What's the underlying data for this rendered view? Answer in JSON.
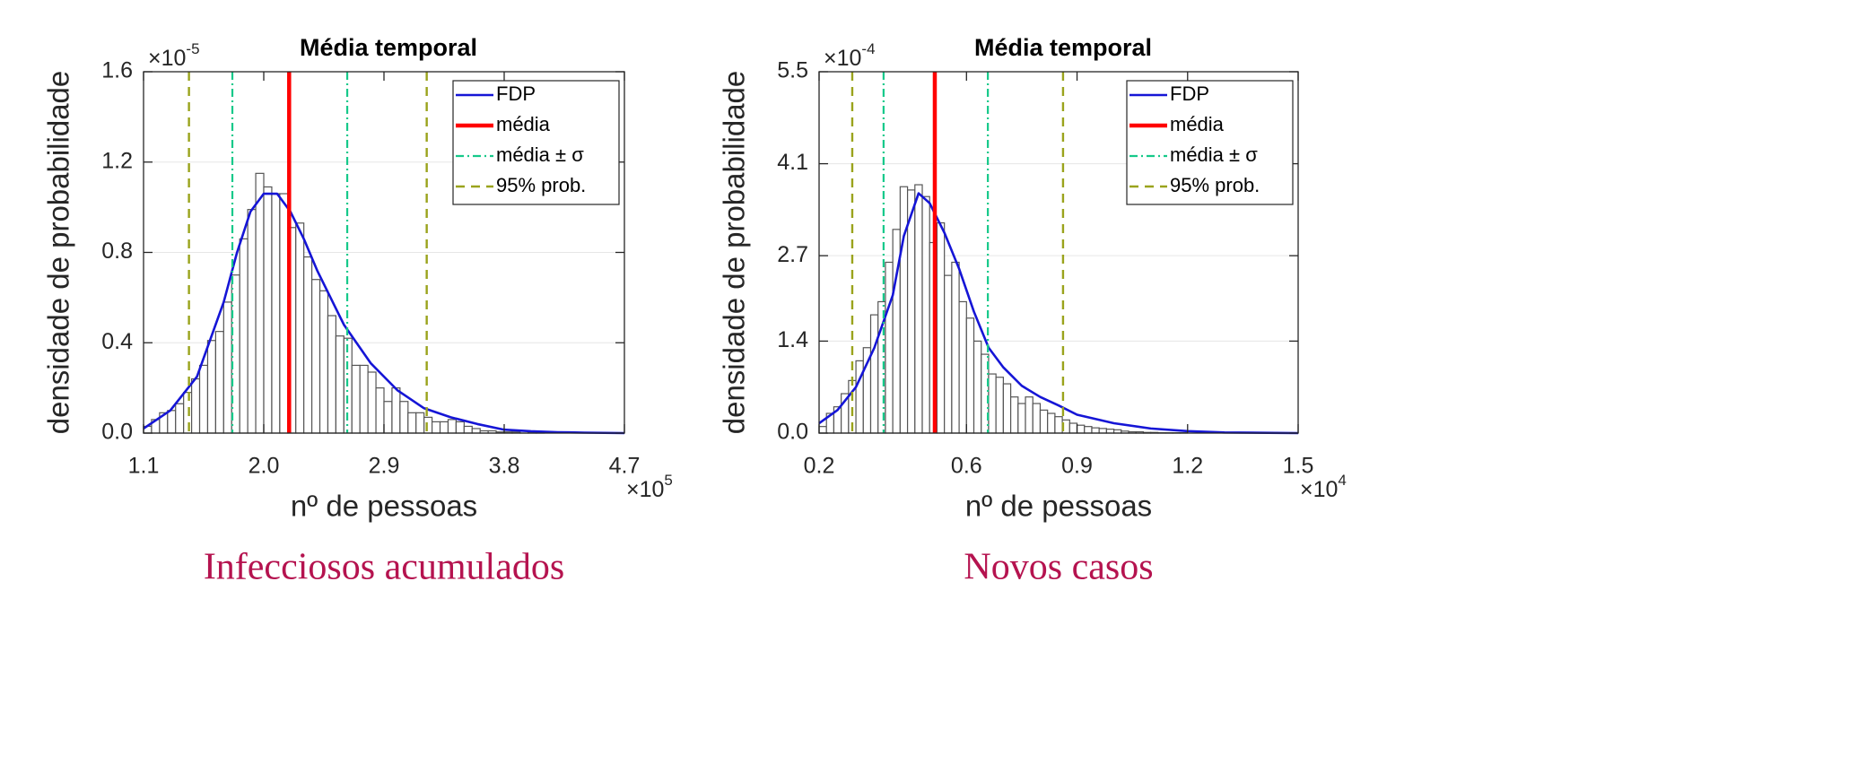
{
  "chart_data": [
    {
      "type": "histogram",
      "title": "Média temporal",
      "xlabel": "nº de pessoas",
      "ylabel": "densidade de probabilidade",
      "caption": "Infecciosos acumulados",
      "x_scale_label": {
        "base": "×10",
        "exponent": "5"
      },
      "y_scale_label": {
        "base": "×10",
        "exponent": "-5"
      },
      "xlim": [
        1.1,
        4.7
      ],
      "xticks": [
        1.1,
        {
          "value": 2.0,
          "label": "2.0"
        },
        2.9,
        3.8,
        4.7
      ],
      "ylim": [
        0,
        1.6
      ],
      "yticks": [
        {
          "value": 0,
          "label": "0.0"
        },
        0.4,
        0.8,
        1.2,
        1.6
      ],
      "grid": true,
      "legend": "upper right",
      "bar_color": "#ffffff",
      "edge_color": "#555555",
      "bins": [
        1.1,
        1.16,
        1.22,
        1.28,
        1.34,
        1.4,
        1.46,
        1.52,
        1.58,
        1.64,
        1.7,
        1.76,
        1.82,
        1.88,
        1.94,
        2.0,
        2.06,
        2.12,
        2.18,
        2.24,
        2.3,
        2.36,
        2.42,
        2.48,
        2.54,
        2.6,
        2.66,
        2.72,
        2.78,
        2.84,
        2.9,
        2.96,
        3.02,
        3.08,
        3.14,
        3.2,
        3.26,
        3.32,
        3.38,
        3.44,
        3.5,
        3.56,
        3.62,
        3.68,
        3.74,
        3.8,
        3.86,
        3.92,
        3.98,
        4.04,
        4.1
      ],
      "values": [
        0.03,
        0.06,
        0.09,
        0.1,
        0.13,
        0.18,
        0.24,
        0.3,
        0.41,
        0.45,
        0.58,
        0.7,
        0.86,
        0.99,
        1.15,
        1.09,
        1.06,
        1.06,
        0.91,
        0.93,
        0.78,
        0.68,
        0.63,
        0.52,
        0.43,
        0.42,
        0.3,
        0.3,
        0.27,
        0.2,
        0.14,
        0.2,
        0.14,
        0.09,
        0.09,
        0.07,
        0.05,
        0.05,
        0.06,
        0.05,
        0.03,
        0.02,
        0.01,
        0.01,
        0.005,
        0.005,
        0.005,
        0.01,
        0.005,
        0.005
      ],
      "series": [
        {
          "name": "FDP",
          "color": "#1515d6",
          "style": "solid",
          "x": [
            1.1,
            1.3,
            1.5,
            1.7,
            1.8,
            1.9,
            2.0,
            2.1,
            2.2,
            2.3,
            2.4,
            2.6,
            2.8,
            3.0,
            3.2,
            3.4,
            3.6,
            3.8,
            4.0,
            4.2,
            4.4,
            4.7
          ],
          "values": [
            0.02,
            0.1,
            0.25,
            0.58,
            0.8,
            0.98,
            1.06,
            1.06,
            0.98,
            0.86,
            0.72,
            0.48,
            0.31,
            0.19,
            0.11,
            0.07,
            0.04,
            0.015,
            0.008,
            0.004,
            0.002,
            0
          ]
        },
        {
          "name": "média",
          "color": "#ff0000",
          "style": "thick",
          "x_values": [
            2.19
          ]
        },
        {
          "name": "média ± σ",
          "color": "#16c98a",
          "style": "dashdot",
          "x_values": [
            1.765,
            2.625
          ]
        },
        {
          "name": "95% prob.",
          "color": "#9aa31c",
          "style": "dashed",
          "x_values": [
            1.44,
            3.22
          ]
        }
      ]
    },
    {
      "type": "histogram",
      "title": "Média temporal",
      "xlabel": "nº de pessoas",
      "ylabel": "densidade de probabilidade",
      "caption": "Novos casos",
      "x_scale_label": {
        "base": "×10",
        "exponent": "4"
      },
      "y_scale_label": {
        "base": "×10",
        "exponent": "-4"
      },
      "xlim": [
        0.2,
        1.5
      ],
      "xticks": [
        0.2,
        0.6,
        0.9,
        1.2,
        1.5
      ],
      "ylim": [
        0,
        5.5
      ],
      "yticks": [
        {
          "value": 0,
          "label": "0.0"
        },
        1.4,
        2.7,
        4.1,
        5.5
      ],
      "grid": true,
      "legend": "upper right",
      "bar_color": "#ffffff",
      "edge_color": "#555555",
      "bins": [
        0.2,
        0.22,
        0.24,
        0.26,
        0.28,
        0.3,
        0.32,
        0.34,
        0.36,
        0.38,
        0.4,
        0.42,
        0.44,
        0.46,
        0.48,
        0.5,
        0.52,
        0.54,
        0.56,
        0.58,
        0.6,
        0.62,
        0.64,
        0.66,
        0.68,
        0.7,
        0.72,
        0.74,
        0.76,
        0.78,
        0.8,
        0.82,
        0.84,
        0.86,
        0.88,
        0.9,
        0.92,
        0.94,
        0.96,
        0.98,
        1.0,
        1.02,
        1.04,
        1.06,
        1.08,
        1.1,
        1.12,
        1.14,
        1.16,
        1.18,
        1.2
      ],
      "values": [
        0.1,
        0.3,
        0.4,
        0.6,
        0.8,
        1.1,
        1.3,
        1.8,
        2.0,
        2.6,
        3.1,
        3.75,
        3.7,
        3.78,
        3.6,
        2.9,
        3.2,
        2.4,
        2.6,
        2.0,
        1.75,
        1.4,
        1.2,
        0.9,
        0.85,
        0.75,
        0.55,
        0.45,
        0.55,
        0.45,
        0.35,
        0.3,
        0.25,
        0.2,
        0.15,
        0.12,
        0.1,
        0.08,
        0.07,
        0.06,
        0.05,
        0.03,
        0.02,
        0.02,
        0.01,
        0.01,
        0.005,
        0.005,
        0.005,
        0.005
      ],
      "series": [
        {
          "name": "FDP",
          "color": "#1515d6",
          "style": "solid",
          "x": [
            0.2,
            0.25,
            0.3,
            0.35,
            0.4,
            0.43,
            0.47,
            0.5,
            0.54,
            0.58,
            0.62,
            0.66,
            0.7,
            0.75,
            0.8,
            0.85,
            0.9,
            1.0,
            1.1,
            1.2,
            1.3,
            1.5
          ],
          "values": [
            0.15,
            0.35,
            0.7,
            1.3,
            2.1,
            3.0,
            3.65,
            3.5,
            3.05,
            2.5,
            1.85,
            1.3,
            1.0,
            0.72,
            0.55,
            0.42,
            0.28,
            0.15,
            0.07,
            0.03,
            0.01,
            0
          ]
        },
        {
          "name": "média",
          "color": "#ff0000",
          "style": "thick",
          "x_values": [
            0.514
          ]
        },
        {
          "name": "média ± σ",
          "color": "#16c98a",
          "style": "dashdot",
          "x_values": [
            0.375,
            0.658
          ]
        },
        {
          "name": "95% prob.",
          "color": "#9aa31c",
          "style": "dashed",
          "x_values": [
            0.29,
            0.862
          ]
        }
      ]
    }
  ]
}
